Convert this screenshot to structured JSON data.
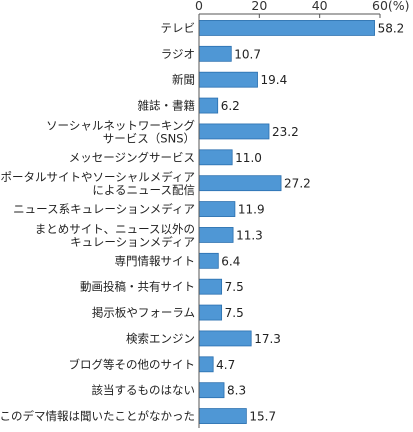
{
  "chart_data": {
    "type": "bar",
    "orientation": "horizontal",
    "categories": [
      [
        "テレビ"
      ],
      [
        "ラジオ"
      ],
      [
        "新聞"
      ],
      [
        "雑誌・書籍"
      ],
      [
        "ソーシャルネットワーキング",
        "サービス（SNS）"
      ],
      [
        "メッセージングサービス"
      ],
      [
        "ポータルサイトやソーシャルメディア",
        "によるニュース配信"
      ],
      [
        "ニュース系キュレーションメディア"
      ],
      [
        "まとめサイト、ニュース以外の",
        "キュレーションメディア"
      ],
      [
        "専門情報サイト"
      ],
      [
        "動画投稿・共有サイト"
      ],
      [
        "掲示板やフォーラム"
      ],
      [
        "検索エンジン"
      ],
      [
        "ブログ等その他のサイト"
      ],
      [
        "該当するものはない"
      ],
      [
        "このデマ情報は聞いたことがなかった"
      ]
    ],
    "values": [
      58.2,
      10.7,
      19.4,
      6.2,
      23.2,
      11.0,
      27.2,
      11.9,
      11.3,
      6.4,
      7.5,
      7.5,
      17.3,
      4.7,
      8.3,
      15.7
    ],
    "value_labels": [
      "58.2",
      "10.7",
      "19.4",
      "6.2",
      "23.2",
      "11.0",
      "27.2",
      "11.9",
      "11.3",
      "6.4",
      "7.5",
      "7.5",
      "17.3",
      "4.7",
      "8.3",
      "15.7"
    ],
    "xlim": [
      0,
      60
    ],
    "x_ticks": [
      0,
      20,
      40,
      60
    ],
    "x_tick_labels": [
      "0",
      "20",
      "40",
      "60(%)"
    ],
    "grid": false,
    "title": "",
    "xlabel": "",
    "ylabel": "",
    "bar_color": "#4f97d5"
  }
}
